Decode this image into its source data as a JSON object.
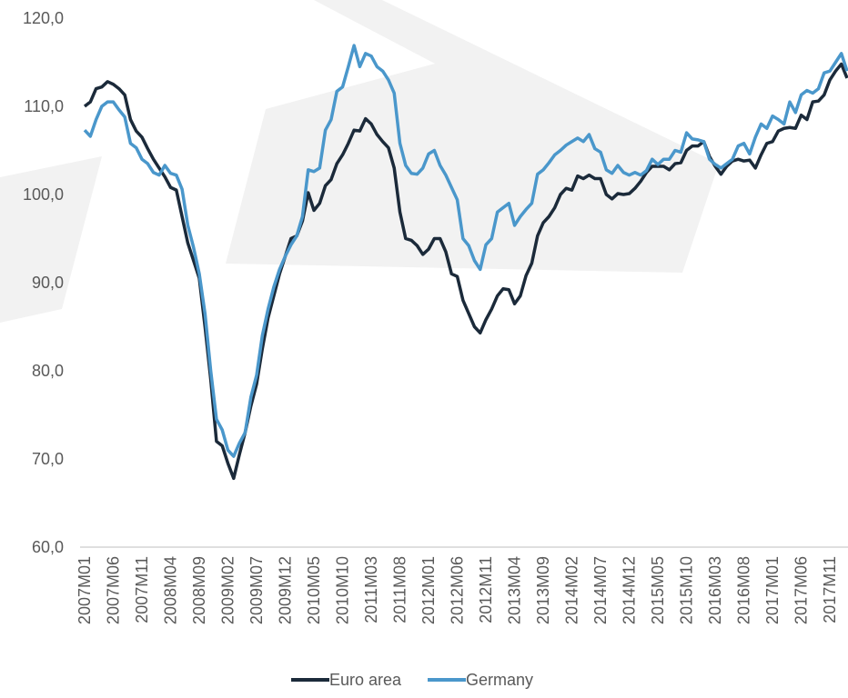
{
  "chart_data": {
    "type": "line",
    "categories": [
      "2007M01",
      null,
      null,
      null,
      null,
      "2007M06",
      null,
      null,
      null,
      null,
      "2007M11",
      null,
      null,
      null,
      null,
      "2008M04",
      null,
      null,
      null,
      null,
      "2008M09",
      null,
      null,
      null,
      null,
      "2009M02",
      null,
      null,
      null,
      null,
      "2009M07",
      null,
      null,
      null,
      null,
      "2009M12",
      null,
      null,
      null,
      null,
      "2010M05",
      null,
      null,
      null,
      null,
      "2010M10",
      null,
      null,
      null,
      null,
      "2011M03",
      null,
      null,
      null,
      null,
      "2011M08",
      null,
      null,
      null,
      null,
      "2012M01",
      null,
      null,
      null,
      null,
      "2012M06",
      null,
      null,
      null,
      null,
      "2012M11",
      null,
      null,
      null,
      null,
      "2013M04",
      null,
      null,
      null,
      null,
      "2013M09",
      null,
      null,
      null,
      null,
      "2014M02",
      null,
      null,
      null,
      null,
      "2014M07",
      null,
      null,
      null,
      null,
      "2014M12",
      null,
      null,
      null,
      null,
      "2015M05",
      null,
      null,
      null,
      null,
      "2015M10",
      null,
      null,
      null,
      null,
      "2016M03",
      null,
      null,
      null,
      null,
      "2016M08",
      null,
      null,
      null,
      null,
      "2017M01",
      null,
      null,
      null,
      null,
      "2017M06",
      null,
      null,
      null,
      null,
      "2017M11",
      null,
      null,
      null
    ],
    "series": [
      {
        "name": "Euro area",
        "color": "#1b2a3a",
        "values": [
          110,
          110.5,
          112,
          112.2,
          112.8,
          112.5,
          112,
          111.3,
          108.5,
          107.2,
          106.5,
          105.2,
          104,
          103,
          102,
          100.8,
          100.5,
          97.5,
          94.5,
          92.5,
          90.5,
          85,
          79,
          72,
          71.5,
          69.5,
          67.8,
          70.5,
          73,
          76,
          78.5,
          82.5,
          86,
          88.5,
          91,
          93,
          95,
          95.3,
          97,
          100.2,
          98.2,
          99,
          101,
          101.7,
          103.5,
          104.5,
          105.8,
          107.3,
          107.2,
          108.6,
          108,
          106.8,
          106,
          105.3,
          103,
          98,
          95,
          94.8,
          94.2,
          93.2,
          93.8,
          95,
          95,
          93.5,
          91,
          90.7,
          88,
          86.5,
          85,
          84.3,
          85.8,
          87,
          88.5,
          89.3,
          89.2,
          87.6,
          88.5,
          90.8,
          92.2,
          95.3,
          96.8,
          97.5,
          98.5,
          100,
          100.7,
          100.5,
          102.1,
          101.8,
          102.2,
          101.8,
          101.8,
          100,
          99.5,
          100.1,
          100,
          100.1,
          100.7,
          101.5,
          102.5,
          103.2,
          103.2,
          103.2,
          102.8,
          103.5,
          103.6,
          105,
          105.5,
          105.5,
          106,
          104.3,
          103.2,
          102.3,
          103.2,
          103.8,
          104,
          103.8,
          103.9,
          103,
          104.5,
          105.8,
          106,
          107.2,
          107.5,
          107.6,
          107.5,
          109,
          108.5,
          110.5,
          110.6,
          111.3,
          113,
          114,
          114.8,
          113.2
        ]
      },
      {
        "name": "Germany",
        "color": "#4a97cb",
        "values": [
          107.3,
          106.6,
          108.5,
          110,
          110.5,
          110.5,
          109.6,
          108.8,
          105.8,
          105.3,
          104,
          103.5,
          102.5,
          102.2,
          103.3,
          102.4,
          102.2,
          100.6,
          96.5,
          94,
          91,
          86.5,
          80,
          74.5,
          73.3,
          71,
          70.3,
          71.8,
          73,
          77,
          79.5,
          84,
          87,
          89.5,
          91.5,
          93,
          94.3,
          95.3,
          97.5,
          102.8,
          102.6,
          103,
          107.3,
          108.5,
          111.7,
          112.2,
          114.5,
          116.9,
          114.5,
          116,
          115.7,
          114.5,
          114,
          113,
          111.5,
          105.8,
          103.3,
          102.4,
          102.3,
          103,
          104.6,
          105,
          103.3,
          102.2,
          100.8,
          99.4,
          95,
          94.2,
          92.5,
          91.5,
          94.3,
          95,
          98,
          98.5,
          99,
          96.5,
          97.5,
          98.3,
          99,
          102.3,
          102.8,
          103.6,
          104.5,
          105,
          105.6,
          106,
          106.4,
          106,
          106.8,
          105.2,
          104.8,
          102.8,
          102.4,
          103.3,
          102.5,
          102.2,
          102.5,
          102.2,
          102.7,
          104,
          103.4,
          104,
          104,
          105,
          104.8,
          107,
          106.3,
          106.2,
          106,
          104,
          103.4,
          103,
          103.5,
          104,
          105.5,
          105.8,
          104.6,
          106.5,
          108,
          107.5,
          108.9,
          108.5,
          108,
          110.5,
          109.3,
          111.3,
          111.8,
          111.5,
          112,
          113.8,
          114,
          115,
          116,
          114
        ]
      }
    ],
    "ylim": [
      60,
      120
    ],
    "yticks": [
      {
        "value": 60,
        "label": "60,0"
      },
      {
        "value": 70,
        "label": "70,0"
      },
      {
        "value": 80,
        "label": "80,0"
      },
      {
        "value": 90,
        "label": "90,0"
      },
      {
        "value": 100,
        "label": "100,0"
      },
      {
        "value": 110,
        "label": "110,0"
      },
      {
        "value": 120,
        "label": "120,0"
      }
    ],
    "grid": false,
    "legend": "bottom"
  }
}
